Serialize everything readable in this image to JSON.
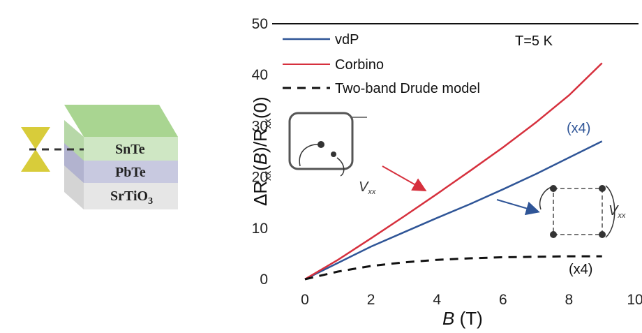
{
  "chart_data": {
    "type": "line",
    "xlabel": "B (T)",
    "ylabel": "ΔR_xx(B)/R_xx(0)",
    "xlim": [
      0,
      10
    ],
    "ylim": [
      0,
      50
    ],
    "xticks": [
      0,
      2,
      4,
      6,
      8,
      10
    ],
    "yticks": [
      0,
      10,
      20,
      30,
      40,
      50
    ],
    "annotation_temperature": "T=5 K",
    "grid": false,
    "legend_position": "top-left",
    "series": [
      {
        "name": "vdP",
        "color": "#2f5597",
        "style": "solid",
        "x": [
          0,
          1,
          2,
          3,
          4,
          5,
          6,
          7,
          8,
          9
        ],
        "y": [
          0,
          3.2,
          6.4,
          9.2,
          12.0,
          14.7,
          17.6,
          20.6,
          23.8,
          27.0
        ],
        "label": "(x4)"
      },
      {
        "name": "Corbino",
        "color": "#d6303d",
        "style": "solid",
        "x": [
          0,
          1,
          2,
          3,
          4,
          5,
          6,
          7,
          8,
          9
        ],
        "y": [
          0,
          3.8,
          8.0,
          12.3,
          16.7,
          21.2,
          25.8,
          30.7,
          36.0,
          42.3
        ]
      },
      {
        "name": "Two-band Drude model",
        "color": "#111111",
        "style": "dashed",
        "x": [
          0,
          1,
          2,
          3,
          4,
          5,
          6,
          7,
          8,
          9
        ],
        "y": [
          0,
          1.5,
          2.6,
          3.3,
          3.8,
          4.1,
          4.3,
          4.4,
          4.5,
          4.5
        ],
        "label": "(x4)"
      }
    ]
  },
  "inset_labels": {
    "corbino": "V",
    "corbino_sub": "xx",
    "vdp": "V",
    "vdp_sub": "xx"
  },
  "layers": [
    "SnTe",
    "PbTe",
    "SrTiO3"
  ],
  "colors": {
    "snte": "#cfe7c4",
    "pbte": "#c8c9e0",
    "srtio3": "#e6e6e6",
    "hourglass": "#d8cc3a"
  }
}
